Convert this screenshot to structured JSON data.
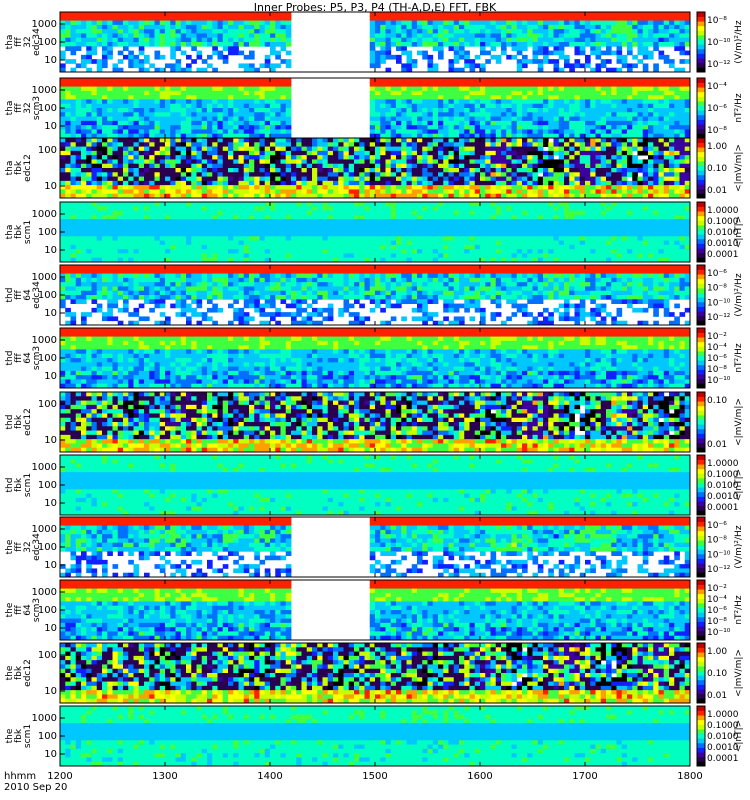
{
  "title": "Inner Probes: P5, P3, P4 (TH-A,D,E) FFT, FBK",
  "footer": {
    "line1": "hhmm",
    "line2": "2010 Sep 20"
  },
  "colors": {
    "scale": [
      "#000000",
      "#2a0050",
      "#3a00a0",
      "#1020ff",
      "#0070ff",
      "#00c8ff",
      "#00ffc0",
      "#40ff40",
      "#c8ff00",
      "#ffff00",
      "#ffa000",
      "#ff2000",
      "#c00000"
    ]
  },
  "chart_data": [
    {
      "type": "heatmap",
      "ylabel": [
        "tha",
        "fff",
        "32",
        "edc34"
      ],
      "yticks": [
        "1000",
        "100",
        "10"
      ],
      "cbar_label": "(V/m)²/Hz",
      "cbar_ticks": [
        "10⁻⁸",
        "10⁻¹⁰",
        "10⁻¹²"
      ],
      "kind": "fft_e",
      "gap": [
        1418,
        1495
      ]
    },
    {
      "type": "heatmap",
      "ylabel": [
        "tha",
        "fff",
        "32",
        "scm3"
      ],
      "yticks": [
        "1000",
        "100",
        "10"
      ],
      "cbar_label": "nT²/Hz",
      "cbar_ticks": [
        "10⁻⁴",
        "10⁻⁶",
        "10⁻⁸"
      ],
      "kind": "fft_b",
      "gap": [
        1418,
        1495
      ]
    },
    {
      "type": "heatmap",
      "ylabel": [
        "tha",
        "fbk",
        "edc12"
      ],
      "yticks": [
        "100",
        "10"
      ],
      "cbar_label": "<|mV/m|>",
      "cbar_ticks": [
        "1.00",
        "0.10",
        "0.01"
      ],
      "kind": "fbk_e",
      "gap": null
    },
    {
      "type": "heatmap",
      "ylabel": [
        "tha",
        "fbk",
        "scm1"
      ],
      "yticks": [
        "1000",
        "100",
        "10"
      ],
      "cbar_label": "<|nT|>",
      "cbar_ticks": [
        "1.0000",
        "0.1000",
        "0.0100",
        "0.0010",
        "0.0001"
      ],
      "kind": "fbk_b",
      "gap": null
    },
    {
      "type": "heatmap",
      "ylabel": [
        "thd",
        "fff",
        "64",
        "edc34"
      ],
      "yticks": [
        "1000",
        "100",
        "10"
      ],
      "cbar_label": "(V/m)²/Hz",
      "cbar_ticks": [
        "10⁻⁶",
        "10⁻⁸",
        "10⁻¹⁰",
        "10⁻¹²"
      ],
      "kind": "fft_e",
      "gap": null
    },
    {
      "type": "heatmap",
      "ylabel": [
        "thd",
        "fff",
        "64",
        "scm3"
      ],
      "yticks": [
        "1000",
        "100",
        "10"
      ],
      "cbar_label": "nT²/Hz",
      "cbar_ticks": [
        "10⁻²",
        "10⁻⁴",
        "10⁻⁶",
        "10⁻⁸",
        "10⁻¹⁰"
      ],
      "kind": "fft_b",
      "gap": null
    },
    {
      "type": "heatmap",
      "ylabel": [
        "thd",
        "fbk",
        "edc12"
      ],
      "yticks": [
        "100",
        "10"
      ],
      "cbar_label": "<|mV/m|>",
      "cbar_ticks": [
        "0.10",
        "0.01"
      ],
      "kind": "fbk_e",
      "gap": null
    },
    {
      "type": "heatmap",
      "ylabel": [
        "thd",
        "fbk",
        "scm1"
      ],
      "yticks": [
        "1000",
        "100",
        "10"
      ],
      "cbar_label": "<|nT|>",
      "cbar_ticks": [
        "1.0000",
        "0.1000",
        "0.0100",
        "0.0010",
        "0.0001"
      ],
      "kind": "fbk_b",
      "gap": null
    },
    {
      "type": "heatmap",
      "ylabel": [
        "the",
        "fff",
        "32",
        "edc34"
      ],
      "yticks": [
        "1000",
        "100",
        "10"
      ],
      "cbar_label": "(V/m)²/Hz",
      "cbar_ticks": [
        "10⁻⁶",
        "10⁻⁸",
        "10⁻¹⁰",
        "10⁻¹²"
      ],
      "kind": "fft_e",
      "gap": [
        1418,
        1495
      ]
    },
    {
      "type": "heatmap",
      "ylabel": [
        "the",
        "fff",
        "64",
        "scm3"
      ],
      "yticks": [
        "1000",
        "100",
        "10"
      ],
      "cbar_label": "nT²/Hz",
      "cbar_ticks": [
        "10⁻²",
        "10⁻⁴",
        "10⁻⁶",
        "10⁻⁸",
        "10⁻¹⁰"
      ],
      "kind": "fft_b",
      "gap": [
        1418,
        1495
      ]
    },
    {
      "type": "heatmap",
      "ylabel": [
        "the",
        "fbk",
        "edc12"
      ],
      "yticks": [
        "100",
        "10"
      ],
      "cbar_label": "<|mV/m|>",
      "cbar_ticks": [
        "1.00",
        "0.10",
        "0.01"
      ],
      "kind": "fbk_e",
      "gap": null
    },
    {
      "type": "heatmap",
      "ylabel": [
        "the",
        "fbk",
        "scm1"
      ],
      "yticks": [
        "1000",
        "100",
        "10"
      ],
      "cbar_label": "<|nT|>",
      "cbar_ticks": [
        "1.0000",
        "0.1000",
        "0.0100",
        "0.0010",
        "0.0001"
      ],
      "kind": "fbk_b",
      "gap": null
    }
  ],
  "xaxis": {
    "ticks": [
      "1200",
      "1300",
      "1400",
      "1500",
      "1600",
      "1700",
      "1800"
    ],
    "range": [
      1200,
      1800
    ]
  }
}
